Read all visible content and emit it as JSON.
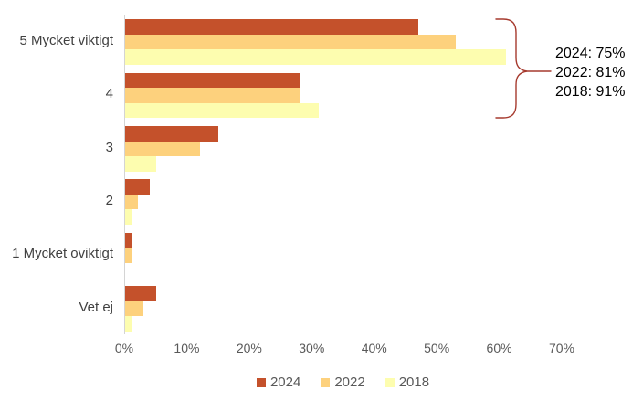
{
  "colors": {
    "series_2024": "#C4512B",
    "series_2022": "#FDD17D",
    "series_2018": "#FDFDAF",
    "brace": "#A63A2E",
    "axis_line": "#D4D4D4",
    "tick_text": "#595959",
    "category_text": "#404040",
    "annotation_text": "#000000"
  },
  "chart_data": {
    "type": "bar",
    "orientation": "horizontal",
    "title": "",
    "xlabel": "",
    "ylabel": "",
    "categories": [
      "5 Mycket viktigt",
      "4",
      "3",
      "2",
      "1 Mycket oviktigt",
      "Vet ej"
    ],
    "series": [
      {
        "name": "2024",
        "color": "#C4512B",
        "values": [
          47,
          28,
          15,
          4,
          1,
          5
        ]
      },
      {
        "name": "2022",
        "color": "#FDD17D",
        "values": [
          53,
          28,
          12,
          2,
          1,
          3
        ]
      },
      {
        "name": "2018",
        "color": "#FDFDAF",
        "values": [
          61,
          31,
          5,
          1,
          0,
          1
        ]
      }
    ],
    "x_axis": {
      "min": 0,
      "max": 70,
      "tick_step": 10,
      "ticks": [
        "0%",
        "10%",
        "20%",
        "30%",
        "40%",
        "50%",
        "60%",
        "70%"
      ]
    },
    "grid": "off",
    "legend_position": "bottom",
    "legend": [
      "2024",
      "2022",
      "2018"
    ],
    "annotation": {
      "lines": [
        "2024: 75%",
        "2022: 81%",
        "2018: 91%"
      ],
      "line_0": "2024: 75%",
      "line_1": "2022: 81%",
      "line_2": "2018: 91%",
      "brace_target_categories": [
        "5 Mycket viktigt",
        "4"
      ]
    }
  }
}
